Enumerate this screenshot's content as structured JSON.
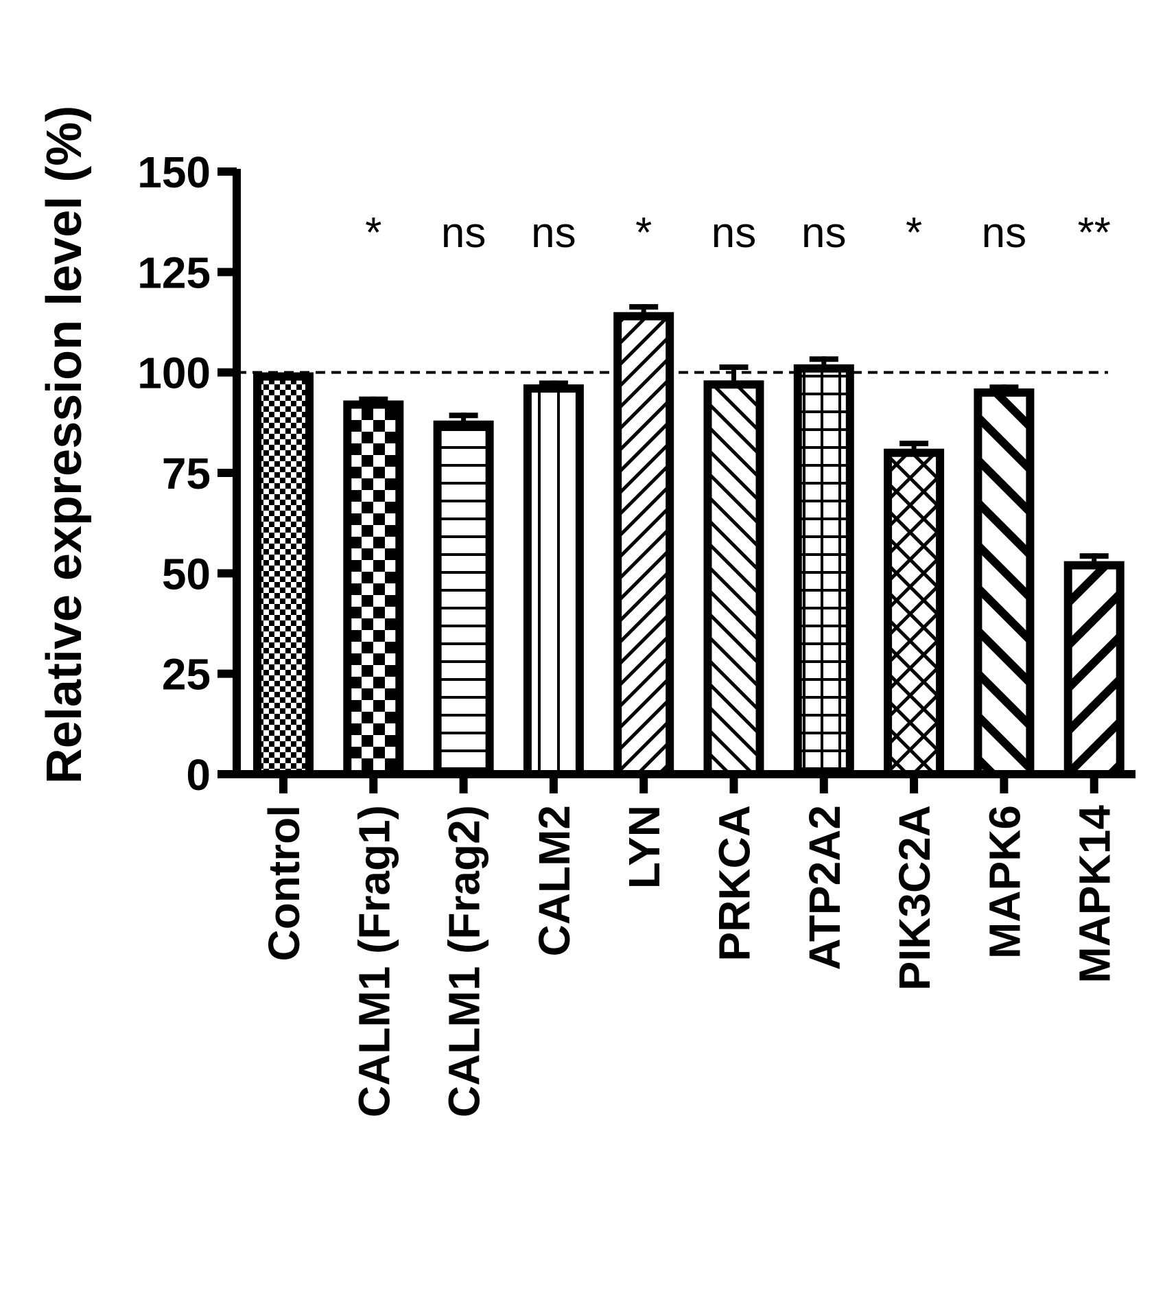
{
  "chart_data": {
    "type": "bar",
    "title": "",
    "xlabel": "",
    "ylabel": "Relative expression level (%)",
    "ylim": [
      0,
      150
    ],
    "yticks": [
      0,
      25,
      50,
      75,
      100,
      125,
      150
    ],
    "grid": false,
    "legend": null,
    "reference_line": {
      "y": 100,
      "style": "dashed"
    },
    "categories": [
      "Control",
      "CALM1 (Frag1)",
      "CALM1 (Frag2)",
      "CALM2",
      "LYN",
      "PRKCA",
      "ATP2A2",
      "PIK3C2A",
      "MAPK6",
      "MAPK14"
    ],
    "values": [
      99,
      92,
      87,
      96,
      114,
      97,
      101,
      80,
      95,
      52
    ],
    "error_upper": [
      0,
      2,
      3,
      2,
      3,
      5,
      3,
      3,
      2,
      3
    ],
    "significance": [
      "",
      "*",
      "ns",
      "ns",
      "*",
      "ns",
      "ns",
      "*",
      "ns",
      "**"
    ],
    "patterns": [
      "fine-checker",
      "coarse-checker",
      "horizontal-lines",
      "vertical-lines",
      "fine-diagonal-up",
      "diagonal-down",
      "grid",
      "diagonal-crosshatch",
      "thick-diagonal-down",
      "thick-diagonal-up"
    ],
    "bar_color": "#000000",
    "fill_color": "#ffffff"
  },
  "axis": {
    "y_title": "Relative expression level (%)",
    "y_tick_labels": [
      "0",
      "25",
      "50",
      "75",
      "100",
      "125",
      "150"
    ]
  }
}
